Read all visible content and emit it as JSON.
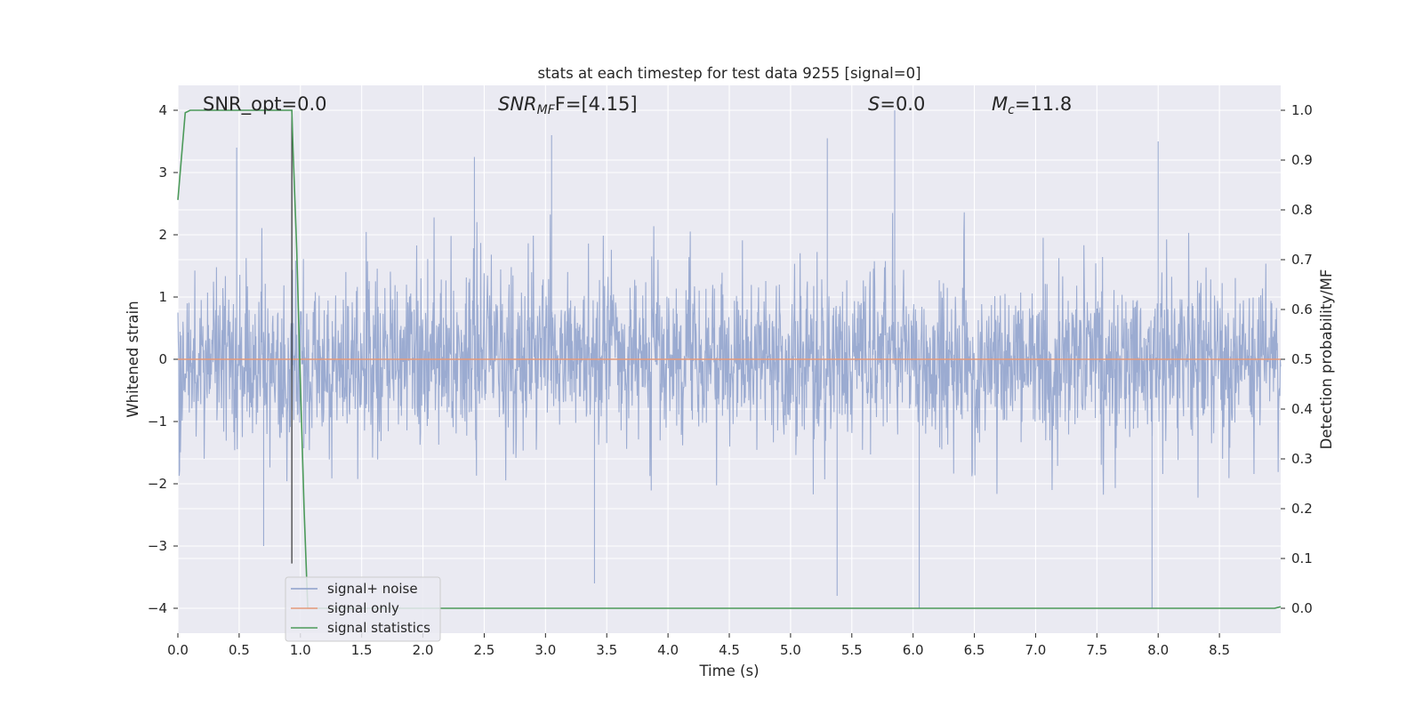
{
  "chart_data": {
    "type": "line",
    "title": "stats at each timestep for test data 9255 [signal=0]",
    "xlabel": "Time (s)",
    "ylabel_left": "Whitened strain",
    "ylabel_right": "Detection probability/MF",
    "xlim": [
      0.0,
      9.0
    ],
    "ylim_left": [
      -4.4,
      4.4
    ],
    "ylim_right": [
      -0.05,
      1.05
    ],
    "x_ticks": [
      "0.0",
      "0.5",
      "1.0",
      "1.5",
      "2.0",
      "2.5",
      "3.0",
      "3.5",
      "4.0",
      "4.5",
      "5.0",
      "5.5",
      "6.0",
      "6.5",
      "7.0",
      "7.5",
      "8.0",
      "8.5"
    ],
    "y_ticks_left": [
      "4",
      "3",
      "2",
      "1",
      "0",
      "−1",
      "−2",
      "−3",
      "−4"
    ],
    "y_ticks_right": [
      "1.0",
      "0.9",
      "0.8",
      "0.7",
      "0.6",
      "0.5",
      "0.4",
      "0.3",
      "0.2",
      "0.1",
      "0.0"
    ],
    "grid": true,
    "legend_position": "lower-left",
    "annotations": {
      "snr_opt": "SNR_opt=0.0",
      "snr_mf_main": "SNR",
      "snr_mf_sub": "MF",
      "snr_mf_value": "F=[4.15]",
      "s_main": "S",
      "s_value": "=0.0",
      "mc_main": "M",
      "mc_sub": "c",
      "mc_value": "=11.8"
    },
    "series": [
      {
        "name": "signal+ noise",
        "color": "#8da0cb",
        "axis": "left",
        "description_level": "dense noise, roughly within [-2, 2] with spikes up to about ±4",
        "spikes": [
          {
            "x": 0.48,
            "y": 3.4
          },
          {
            "x": 0.7,
            "y": -3.0
          },
          {
            "x": 2.42,
            "y": 3.25
          },
          {
            "x": 3.05,
            "y": 3.6
          },
          {
            "x": 3.4,
            "y": -3.6
          },
          {
            "x": 5.3,
            "y": 3.55
          },
          {
            "x": 5.38,
            "y": -3.8
          },
          {
            "x": 5.85,
            "y": 4.0
          },
          {
            "x": 6.05,
            "y": -4.0
          },
          {
            "x": 7.95,
            "y": -4.0
          },
          {
            "x": 8.0,
            "y": 3.5
          }
        ]
      },
      {
        "name": "signal only",
        "color": "#e5997a",
        "axis": "left",
        "x": [
          0.0,
          9.0
        ],
        "y": [
          0.0,
          0.0
        ]
      },
      {
        "name": "signal statistics",
        "color": "#4c9a5a",
        "axis": "right",
        "x": [
          0.0,
          0.06,
          0.1,
          0.2,
          0.5,
          0.93,
          0.94,
          0.97,
          1.0,
          1.03,
          1.06,
          1.2,
          5.0,
          8.95,
          9.0
        ],
        "y": [
          0.82,
          0.995,
          1.0,
          1.0,
          1.0,
          1.0,
          0.92,
          0.72,
          0.45,
          0.2,
          0.0,
          0.0,
          0.0,
          0.0,
          0.003
        ]
      }
    ],
    "vertical_marker": {
      "x": 0.93,
      "color": "#333333"
    }
  }
}
